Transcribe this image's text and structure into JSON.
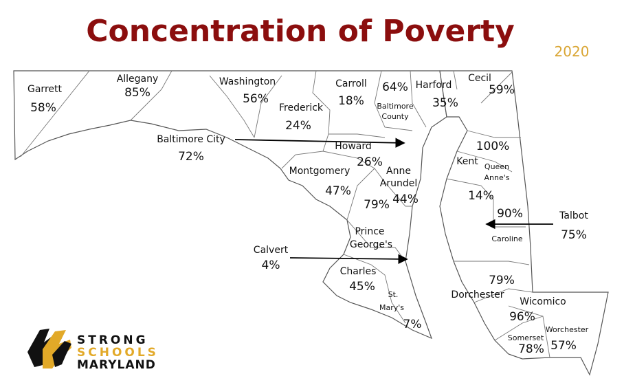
{
  "header": {
    "title": "Concentration of Poverty",
    "year": "2020"
  },
  "counties": [
    {
      "name": [
        "Garrett"
      ],
      "value": "58%"
    },
    {
      "name": [
        "Allegany"
      ],
      "value": "85%"
    },
    {
      "name": [
        "Washington"
      ],
      "value": "56%"
    },
    {
      "name": [
        "Frederick"
      ],
      "value": "24%"
    },
    {
      "name": [
        "Carroll"
      ],
      "value": "18%"
    },
    {
      "name": [
        "Baltimore",
        "County"
      ],
      "value": "64%"
    },
    {
      "name": [
        "Harford"
      ],
      "value": "35%"
    },
    {
      "name": [
        "Cecil"
      ],
      "value": "59%"
    },
    {
      "name": [
        "Baltimore City"
      ],
      "value": "72%"
    },
    {
      "name": [
        "Howard"
      ],
      "value": "26%"
    },
    {
      "name": [
        "Montgomery"
      ],
      "value": "47%"
    },
    {
      "name": [
        "Anne",
        "Arundel"
      ],
      "value": "44%"
    },
    {
      "name": [
        "Prince",
        "George's"
      ],
      "value": "79%"
    },
    {
      "name": [
        "Kent"
      ],
      "value": "100%"
    },
    {
      "name": [
        "Queen",
        "Anne's"
      ],
      "value": "14%"
    },
    {
      "name": [
        "Talbot"
      ],
      "value": "75%"
    },
    {
      "name": [
        "Caroline"
      ],
      "value": "90%"
    },
    {
      "name": [
        "Calvert"
      ],
      "value": "4%"
    },
    {
      "name": [
        "Charles"
      ],
      "value": "45%"
    },
    {
      "name": [
        "St.",
        "Mary's"
      ],
      "value": "7%"
    },
    {
      "name": [
        "Dorchester"
      ],
      "value": "79%"
    },
    {
      "name": [
        "Wicomico"
      ],
      "value": "96%"
    },
    {
      "name": [
        "Somerset"
      ],
      "value": "78%"
    },
    {
      "name": [
        "Worchester"
      ],
      "value": "57%"
    }
  ],
  "logo": {
    "line1": "STRONG",
    "line2": "SCHOOLS",
    "line3": "MARYLAND"
  }
}
